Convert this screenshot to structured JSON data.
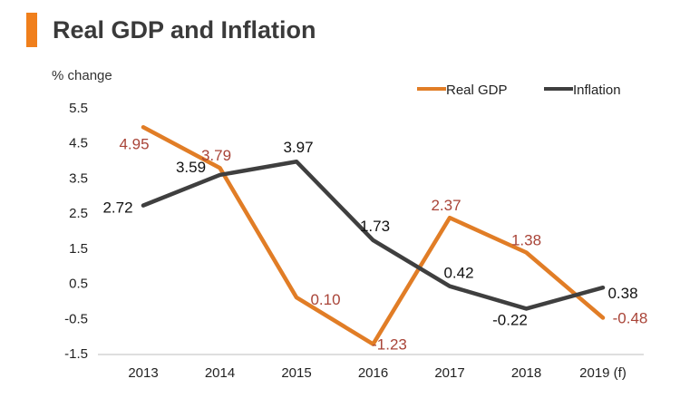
{
  "title": "Real GDP and Inflation",
  "colors": {
    "accent": "#f07f1c",
    "real_gdp": "#e17d26",
    "inflation": "#3f3f3f",
    "gdp_label": "#a94438",
    "inflation_label": "#111111"
  },
  "chart_data": {
    "type": "line",
    "title": "Real GDP and Inflation",
    "ylabel": "% change",
    "xlabel": "",
    "ylim": [
      -1.5,
      5.5
    ],
    "yticks": [
      5.5,
      4.5,
      3.5,
      2.5,
      1.5,
      0.5,
      -0.5,
      -1.5
    ],
    "ytick_labels": [
      "5.5",
      "4.5",
      "3.5",
      "2.5",
      "1.5",
      "0.5",
      "-0.5",
      "-1.5"
    ],
    "categories": [
      "2013",
      "2014",
      "2015",
      "2016",
      "2017",
      "2018",
      "2019 (f)"
    ],
    "legend_position": "top-right",
    "series": [
      {
        "name": "Real GDP",
        "color": "#e17d26",
        "values": [
          4.95,
          3.79,
          0.1,
          -1.23,
          2.37,
          1.38,
          -0.48
        ],
        "labels": [
          "4.95",
          "3.79",
          "0.10",
          "-1.23",
          "2.37",
          "1.38",
          "-0.48"
        ]
      },
      {
        "name": "Inflation",
        "color": "#3f3f3f",
        "values": [
          2.72,
          3.59,
          3.97,
          1.73,
          0.42,
          -0.22,
          0.38
        ],
        "labels": [
          "2.72",
          "3.59",
          "3.97",
          "1.73",
          "0.42",
          "-0.22",
          "0.38"
        ]
      }
    ]
  }
}
